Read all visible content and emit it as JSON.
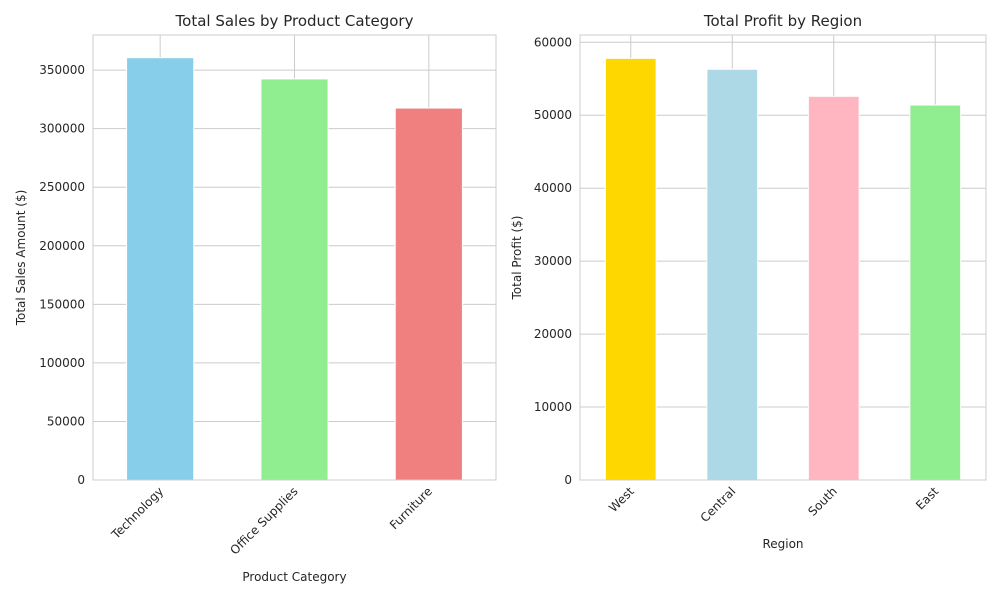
{
  "chart_data": [
    {
      "type": "bar",
      "title": "Total Sales by Product Category",
      "xlabel": "Product Category",
      "ylabel": "Total Sales Amount ($)",
      "categories": [
        "Technology",
        "Office Supplies",
        "Furniture"
      ],
      "values": [
        360600,
        342500,
        317600
      ],
      "colors": [
        "#87ceeb",
        "#90ee90",
        "#f08080"
      ],
      "ylim": [
        0,
        380000
      ],
      "yticks": [
        0,
        50000,
        100000,
        150000,
        200000,
        250000,
        300000,
        350000
      ],
      "grid": true,
      "tick_rotation": 45
    },
    {
      "type": "bar",
      "title": "Total Profit by Region",
      "xlabel": "Region",
      "ylabel": "Total Profit ($)",
      "categories": [
        "West",
        "Central",
        "South",
        "East"
      ],
      "values": [
        57800,
        56300,
        52600,
        51400
      ],
      "colors": [
        "#ffd700",
        "#add8e6",
        "#ffb6c1",
        "#90ee90"
      ],
      "ylim": [
        0,
        61000
      ],
      "yticks": [
        0,
        10000,
        20000,
        30000,
        40000,
        50000,
        60000
      ],
      "grid": true,
      "tick_rotation": 45
    }
  ]
}
